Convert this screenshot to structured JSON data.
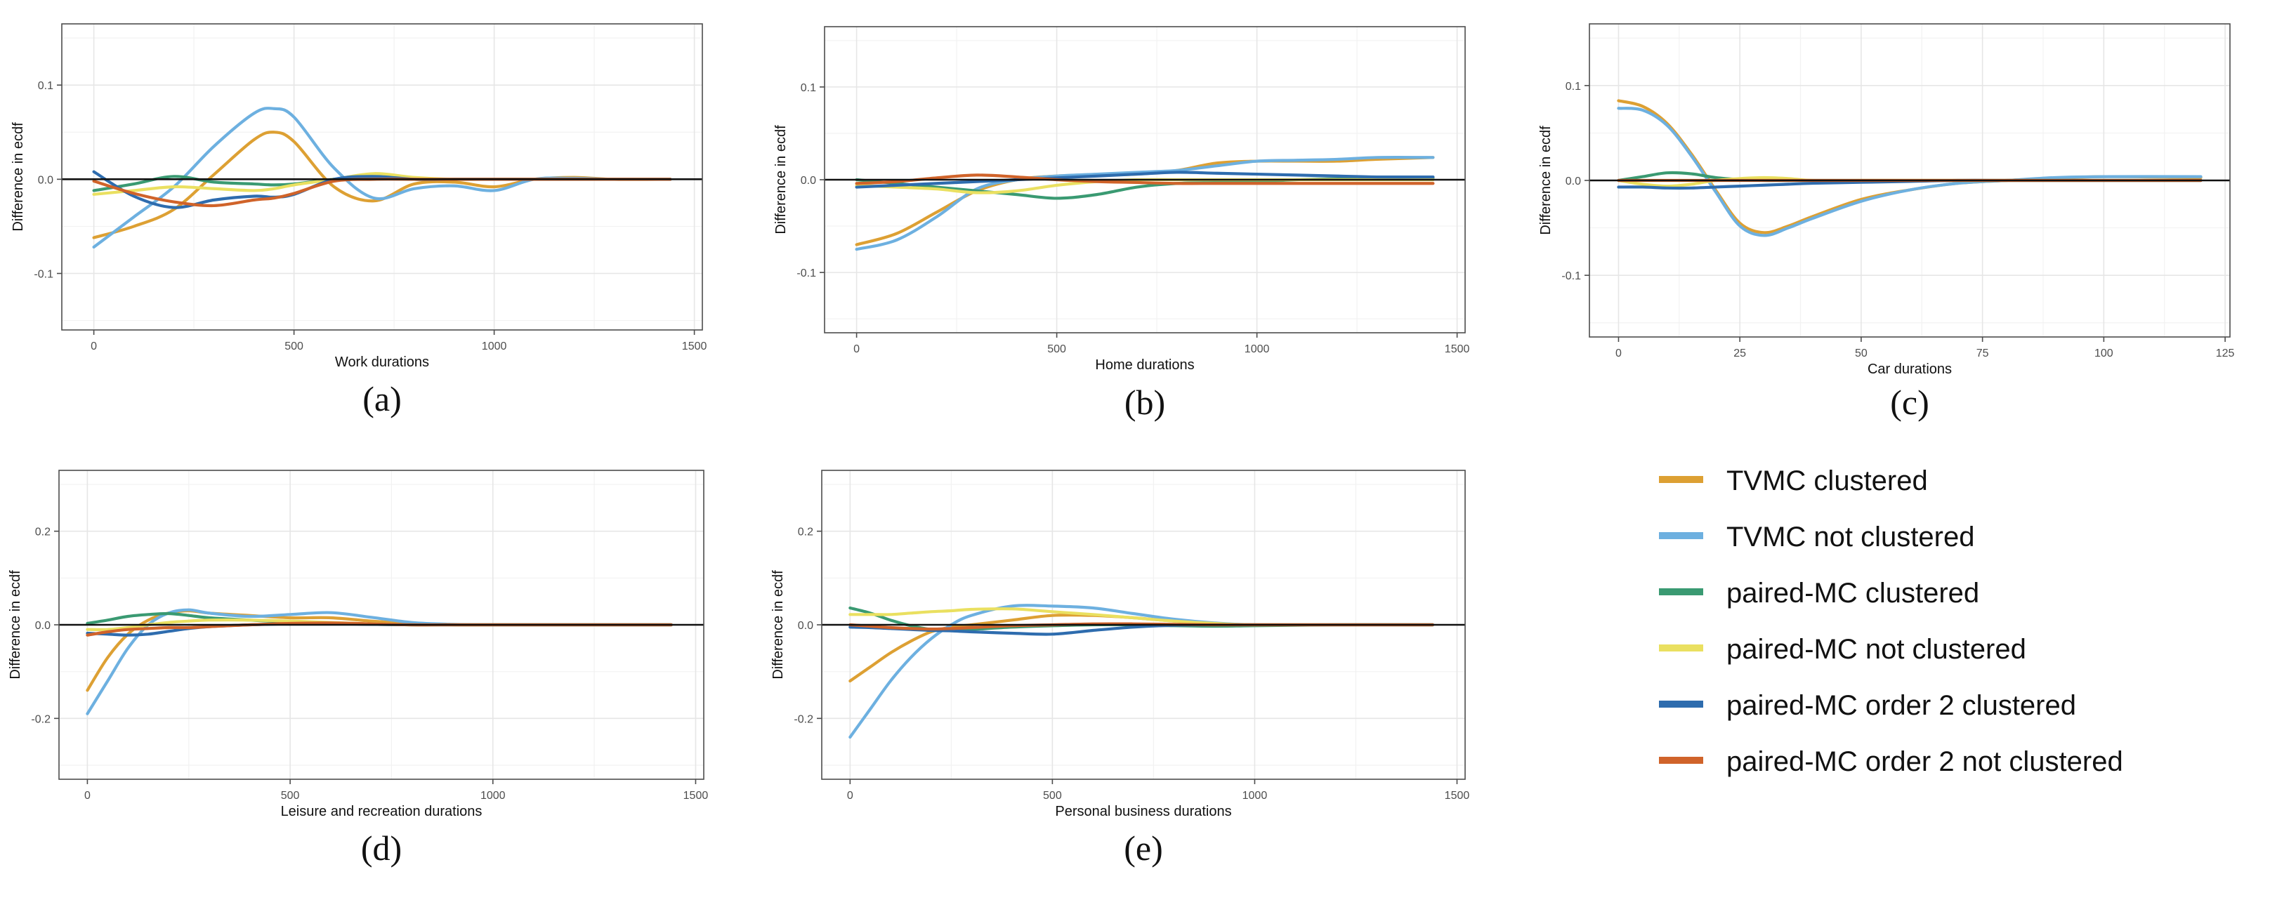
{
  "series": [
    {
      "key": "tvmc_c",
      "name": "TVMC clustered",
      "color": "#DDA033"
    },
    {
      "key": "tvmc_nc",
      "name": "TVMC not clustered",
      "color": "#6DB0E0"
    },
    {
      "key": "pmc_c",
      "name": "paired-MC clustered",
      "color": "#3A9A72"
    },
    {
      "key": "pmc_nc",
      "name": "paired-MC not clustered",
      "color": "#EAE060"
    },
    {
      "key": "pmc2_c",
      "name": "paired-MC order 2 clustered",
      "color": "#2E6CAE"
    },
    {
      "key": "pmc2_nc",
      "name": "paired-MC order 2 not clustered",
      "color": "#D0632A"
    }
  ],
  "chart_data": [
    {
      "type": "line",
      "panel": "(a)",
      "xlabel": "Work durations",
      "ylabel": "Difference in ecdf",
      "xlim": [
        -80,
        1520
      ],
      "ylim": [
        -0.16,
        0.165
      ],
      "xticks": [
        0,
        500,
        1000,
        1500
      ],
      "xtick_labels": [
        "0",
        "500",
        "1000",
        "1500"
      ],
      "yticks": [
        -0.1,
        0.0,
        0.1
      ],
      "ytick_labels": [
        "-0.1",
        "0.0",
        "0.1"
      ],
      "hline": 0,
      "x": [
        0,
        100,
        200,
        300,
        400,
        450,
        500,
        600,
        700,
        800,
        900,
        1000,
        1100,
        1200,
        1300,
        1440
      ],
      "series": [
        {
          "key": "tvmc_c",
          "values": [
            -0.062,
            -0.05,
            -0.032,
            0.005,
            0.042,
            0.05,
            0.04,
            -0.008,
            -0.023,
            -0.005,
            -0.003,
            -0.008,
            0.0,
            0.002,
            0.0,
            0.0
          ]
        },
        {
          "key": "tvmc_nc",
          "values": [
            -0.072,
            -0.04,
            -0.008,
            0.035,
            0.07,
            0.075,
            0.066,
            0.012,
            -0.02,
            -0.01,
            -0.007,
            -0.012,
            0.0,
            0.001,
            0.0,
            0.0
          ]
        },
        {
          "key": "pmc_c",
          "values": [
            -0.012,
            -0.005,
            0.003,
            -0.003,
            -0.005,
            -0.006,
            -0.005,
            0.0,
            0.002,
            0.0,
            0.0,
            0.0,
            0.0,
            0.0,
            0.0,
            0.0
          ]
        },
        {
          "key": "pmc_nc",
          "values": [
            -0.016,
            -0.012,
            -0.008,
            -0.01,
            -0.012,
            -0.01,
            -0.006,
            0.0,
            0.006,
            0.002,
            0.0,
            0.0,
            0.0,
            0.0,
            0.0,
            0.0
          ]
        },
        {
          "key": "pmc2_c",
          "values": [
            0.008,
            -0.018,
            -0.03,
            -0.022,
            -0.018,
            -0.019,
            -0.016,
            0.0,
            0.003,
            0.0,
            0.0,
            0.0,
            0.0,
            0.0,
            0.0,
            0.0
          ]
        },
        {
          "key": "pmc2_nc",
          "values": [
            -0.002,
            -0.015,
            -0.024,
            -0.028,
            -0.022,
            -0.02,
            -0.015,
            -0.002,
            0.0,
            0.0,
            0.0,
            0.0,
            0.0,
            0.0,
            0.0,
            0.0
          ]
        }
      ]
    },
    {
      "type": "line",
      "panel": "(b)",
      "xlabel": "Home durations",
      "ylabel": "Difference in ecdf",
      "xlim": [
        -80,
        1520
      ],
      "ylim": [
        -0.165,
        0.165
      ],
      "xticks": [
        0,
        500,
        1000,
        1500
      ],
      "xtick_labels": [
        "0",
        "500",
        "1000",
        "1500"
      ],
      "yticks": [
        -0.1,
        0.0,
        0.1
      ],
      "ytick_labels": [
        "-0.1",
        "0.0",
        "0.1"
      ],
      "hline": 0,
      "x": [
        0,
        100,
        200,
        300,
        400,
        500,
        600,
        700,
        800,
        900,
        1000,
        1100,
        1200,
        1300,
        1440
      ],
      "series": [
        {
          "key": "tvmc_c",
          "values": [
            -0.07,
            -0.058,
            -0.035,
            -0.012,
            0.0,
            0.004,
            0.005,
            0.006,
            0.01,
            0.018,
            0.02,
            0.02,
            0.02,
            0.022,
            0.024
          ]
        },
        {
          "key": "tvmc_nc",
          "values": [
            -0.075,
            -0.065,
            -0.04,
            -0.01,
            0.0,
            0.004,
            0.006,
            0.008,
            0.01,
            0.015,
            0.02,
            0.021,
            0.022,
            0.024,
            0.024
          ]
        },
        {
          "key": "pmc_c",
          "values": [
            0.0,
            -0.004,
            -0.008,
            -0.012,
            -0.016,
            -0.02,
            -0.016,
            -0.008,
            -0.004,
            -0.003,
            -0.002,
            0.0,
            0.001,
            0.002,
            0.002
          ]
        },
        {
          "key": "pmc_nc",
          "values": [
            -0.006,
            -0.008,
            -0.01,
            -0.014,
            -0.012,
            -0.006,
            -0.002,
            0.0,
            0.0,
            0.0,
            0.0,
            0.0,
            0.0,
            0.0,
            0.0
          ]
        },
        {
          "key": "pmc2_c",
          "values": [
            -0.008,
            -0.006,
            -0.004,
            -0.002,
            0.0,
            0.002,
            0.004,
            0.006,
            0.008,
            0.007,
            0.006,
            0.005,
            0.004,
            0.003,
            0.003
          ]
        },
        {
          "key": "pmc2_nc",
          "values": [
            -0.004,
            -0.002,
            0.002,
            0.005,
            0.003,
            0.0,
            -0.002,
            -0.003,
            -0.004,
            -0.004,
            -0.004,
            -0.004,
            -0.004,
            -0.004,
            -0.004
          ]
        }
      ]
    },
    {
      "type": "line",
      "panel": "(c)",
      "xlabel": "Car durations",
      "ylabel": "Difference in ecdf",
      "xlim": [
        -6,
        126
      ],
      "ylim": [
        -0.165,
        0.165
      ],
      "xticks": [
        0,
        25,
        50,
        75,
        100,
        125
      ],
      "xtick_labels": [
        "0",
        "25",
        "50",
        "75",
        "100",
        "125"
      ],
      "yticks": [
        -0.1,
        0.0,
        0.1
      ],
      "ytick_labels": [
        "-0.1",
        "0.0",
        "0.1"
      ],
      "hline": 0,
      "x": [
        0,
        5,
        10,
        15,
        20,
        25,
        30,
        35,
        40,
        50,
        60,
        70,
        80,
        90,
        100,
        120
      ],
      "series": [
        {
          "key": "tvmc_c",
          "values": [
            0.084,
            0.078,
            0.06,
            0.028,
            -0.01,
            -0.045,
            -0.055,
            -0.048,
            -0.038,
            -0.02,
            -0.01,
            -0.003,
            0.0,
            0.002,
            0.004,
            0.003
          ]
        },
        {
          "key": "tvmc_nc",
          "values": [
            0.076,
            0.074,
            0.058,
            0.026,
            -0.012,
            -0.048,
            -0.058,
            -0.05,
            -0.04,
            -0.022,
            -0.01,
            -0.003,
            0.0,
            0.003,
            0.004,
            0.004
          ]
        },
        {
          "key": "pmc_c",
          "values": [
            0.0,
            0.004,
            0.008,
            0.007,
            0.003,
            0.001,
            0.0,
            0.0,
            0.0,
            0.0,
            0.0,
            0.0,
            0.0,
            0.0,
            0.0,
            0.0
          ]
        },
        {
          "key": "pmc_nc",
          "values": [
            0.0,
            -0.004,
            -0.006,
            -0.004,
            0.0,
            0.002,
            0.003,
            0.002,
            0.0,
            0.0,
            0.0,
            0.0,
            0.0,
            0.0,
            0.0,
            0.0
          ]
        },
        {
          "key": "pmc2_c",
          "values": [
            -0.007,
            -0.007,
            -0.008,
            -0.008,
            -0.007,
            -0.006,
            -0.005,
            -0.004,
            -0.003,
            -0.002,
            -0.001,
            0.0,
            0.0,
            0.0,
            0.0,
            0.0
          ]
        },
        {
          "key": "pmc2_nc",
          "values": [
            0.0,
            0.0,
            0.0,
            0.0,
            0.0,
            0.0,
            0.0,
            0.0,
            0.0,
            0.0,
            0.0,
            0.0,
            0.0,
            0.0,
            0.0,
            0.0
          ]
        }
      ]
    },
    {
      "type": "line",
      "panel": "(d)",
      "xlabel": "Leisure and recreation durations",
      "ylabel": "Difference in ecdf",
      "xlim": [
        -70,
        1520
      ],
      "ylim": [
        -0.33,
        0.33
      ],
      "xticks": [
        0,
        500,
        1000,
        1500
      ],
      "xtick_labels": [
        "0",
        "500",
        "1000",
        "1500"
      ],
      "yticks": [
        -0.2,
        0.0,
        0.2
      ],
      "ytick_labels": [
        "-0.2",
        "0.0",
        "0.2"
      ],
      "hline": 0,
      "x": [
        0,
        50,
        100,
        150,
        200,
        250,
        300,
        400,
        500,
        600,
        700,
        800,
        900,
        1000,
        1200,
        1440
      ],
      "series": [
        {
          "key": "tvmc_c",
          "values": [
            -0.14,
            -0.07,
            -0.02,
            0.01,
            0.025,
            0.03,
            0.025,
            0.02,
            0.015,
            0.015,
            0.008,
            0.003,
            0.0,
            0.0,
            0.0,
            0.0
          ]
        },
        {
          "key": "tvmc_nc",
          "values": [
            -0.19,
            -0.12,
            -0.05,
            0.0,
            0.025,
            0.032,
            0.025,
            0.018,
            0.022,
            0.026,
            0.016,
            0.005,
            0.001,
            0.0,
            0.0,
            0.0
          ]
        },
        {
          "key": "pmc_c",
          "values": [
            0.003,
            0.01,
            0.018,
            0.022,
            0.024,
            0.02,
            0.015,
            0.01,
            0.006,
            0.003,
            0.001,
            0.0,
            0.0,
            0.0,
            0.0,
            0.0
          ]
        },
        {
          "key": "pmc_nc",
          "values": [
            -0.01,
            -0.01,
            -0.006,
            0.0,
            0.005,
            0.008,
            0.01,
            0.01,
            0.008,
            0.005,
            0.002,
            0.0,
            0.0,
            0.0,
            0.0,
            0.0
          ]
        },
        {
          "key": "pmc2_c",
          "values": [
            -0.018,
            -0.02,
            -0.022,
            -0.02,
            -0.014,
            -0.008,
            -0.004,
            0.0,
            0.002,
            0.002,
            0.001,
            0.0,
            0.0,
            0.0,
            0.0,
            0.0
          ]
        },
        {
          "key": "pmc2_nc",
          "values": [
            -0.022,
            -0.015,
            -0.01,
            -0.008,
            -0.006,
            -0.006,
            -0.004,
            0.0,
            0.003,
            0.004,
            0.002,
            0.0,
            0.0,
            0.0,
            0.0,
            0.0
          ]
        }
      ]
    },
    {
      "type": "line",
      "panel": "(e)",
      "xlabel": "Personal business durations",
      "ylabel": "Difference in ecdf",
      "xlim": [
        -70,
        1520
      ],
      "ylim": [
        -0.33,
        0.33
      ],
      "xticks": [
        0,
        500,
        1000,
        1500
      ],
      "xtick_labels": [
        "0",
        "500",
        "1000",
        "1500"
      ],
      "yticks": [
        -0.2,
        0.0,
        0.2
      ],
      "ytick_labels": [
        "-0.2",
        "0.0",
        "0.2"
      ],
      "hline": 0,
      "x": [
        0,
        50,
        100,
        150,
        200,
        250,
        300,
        400,
        500,
        600,
        700,
        800,
        900,
        1000,
        1200,
        1440
      ],
      "series": [
        {
          "key": "tvmc_c",
          "values": [
            -0.12,
            -0.09,
            -0.06,
            -0.035,
            -0.015,
            -0.005,
            0.0,
            0.01,
            0.02,
            0.02,
            0.015,
            0.008,
            0.003,
            0.0,
            0.0,
            0.0
          ]
        },
        {
          "key": "tvmc_nc",
          "values": [
            -0.24,
            -0.18,
            -0.12,
            -0.07,
            -0.03,
            0.0,
            0.02,
            0.04,
            0.04,
            0.036,
            0.024,
            0.012,
            0.004,
            0.0,
            0.0,
            0.0
          ]
        },
        {
          "key": "pmc_c",
          "values": [
            0.036,
            0.025,
            0.01,
            -0.002,
            -0.01,
            -0.012,
            -0.01,
            -0.005,
            -0.002,
            0.0,
            0.0,
            -0.002,
            -0.003,
            -0.002,
            0.0,
            0.0
          ]
        },
        {
          "key": "pmc_nc",
          "values": [
            0.022,
            0.022,
            0.022,
            0.025,
            0.028,
            0.03,
            0.033,
            0.034,
            0.028,
            0.022,
            0.015,
            0.008,
            0.003,
            0.0,
            0.0,
            0.0
          ]
        },
        {
          "key": "pmc2_c",
          "values": [
            -0.005,
            -0.006,
            -0.008,
            -0.01,
            -0.012,
            -0.013,
            -0.015,
            -0.018,
            -0.02,
            -0.012,
            -0.005,
            -0.001,
            0.0,
            0.0,
            0.0,
            0.0
          ]
        },
        {
          "key": "pmc2_nc",
          "values": [
            0.0,
            -0.003,
            -0.006,
            -0.008,
            -0.009,
            -0.008,
            -0.006,
            -0.002,
            0.0,
            0.002,
            0.002,
            0.001,
            0.0,
            0.0,
            0.0,
            0.0
          ]
        }
      ]
    }
  ]
}
